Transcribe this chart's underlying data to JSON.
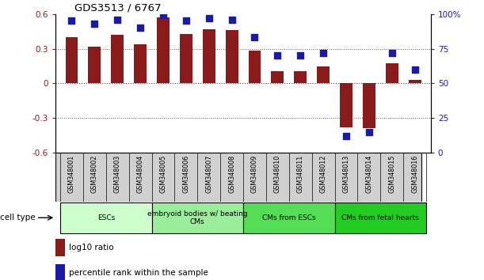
{
  "title": "GDS3513 / 6767",
  "samples": [
    "GSM348001",
    "GSM348002",
    "GSM348003",
    "GSM348004",
    "GSM348005",
    "GSM348006",
    "GSM348007",
    "GSM348008",
    "GSM348009",
    "GSM348010",
    "GSM348011",
    "GSM348012",
    "GSM348013",
    "GSM348014",
    "GSM348015",
    "GSM348016"
  ],
  "log10_ratio": [
    0.4,
    0.315,
    0.42,
    0.335,
    0.57,
    0.43,
    0.47,
    0.46,
    0.285,
    0.105,
    0.105,
    0.145,
    -0.38,
    -0.39,
    0.175,
    0.03
  ],
  "percentile_rank": [
    95,
    93,
    96,
    90,
    99,
    95,
    97,
    96,
    83,
    70,
    70,
    72,
    12,
    15,
    72,
    60
  ],
  "bar_color": "#8b1a1a",
  "dot_color": "#1a1aaa",
  "ylim_left": [
    -0.6,
    0.6
  ],
  "ylim_right": [
    0,
    100
  ],
  "yticks_left": [
    -0.6,
    -0.3,
    0.0,
    0.3,
    0.6
  ],
  "yticks_right": [
    0,
    25,
    50,
    75,
    100
  ],
  "ytick_labels_right": [
    "0",
    "25",
    "50",
    "75",
    "100%"
  ],
  "cell_type_groups": [
    {
      "label": "ESCs",
      "start": 0,
      "end": 3,
      "color": "#ccffcc"
    },
    {
      "label": "embryoid bodies w/ beating\nCMs",
      "start": 4,
      "end": 7,
      "color": "#99ee99"
    },
    {
      "label": "CMs from ESCs",
      "start": 8,
      "end": 11,
      "color": "#55dd55"
    },
    {
      "label": "CMs from fetal hearts",
      "start": 12,
      "end": 15,
      "color": "#22cc22"
    }
  ],
  "legend_red_label": "log10 ratio",
  "legend_blue_label": "percentile rank within the sample",
  "cell_type_label": "cell type",
  "hline_color": "#cc0000",
  "dotted_line_color": "#555555",
  "bar_width": 0.55,
  "dot_size": 28,
  "xlabel_bg_color": "#d0d0d0",
  "spine_color": "#000000"
}
